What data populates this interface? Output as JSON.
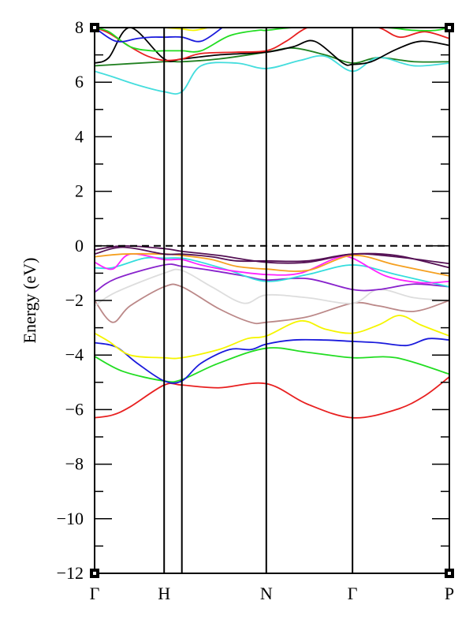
{
  "chart_data": {
    "type": "line",
    "title": "",
    "xlabel": "",
    "ylabel": "Energy (eV)",
    "ylim": [
      -12,
      8
    ],
    "xlim": [
      0,
      1
    ],
    "yticks": [
      -12,
      -10,
      -8,
      -6,
      -4,
      -2,
      0,
      2,
      4,
      6,
      8
    ],
    "ytick_labels": [
      "−12",
      "−10",
      "−8",
      "−6",
      "−4",
      "−2",
      "0",
      "2",
      "4",
      "6",
      "8"
    ],
    "kpoints": [
      {
        "label": "Γ",
        "x": 0.0
      },
      {
        "label": "H",
        "x": 0.196
      },
      {
        "label": "",
        "x": 0.246
      },
      {
        "label": "N",
        "x": 0.484
      },
      {
        "label": "Γ",
        "x": 0.727
      },
      {
        "label": "P",
        "x": 1.0
      }
    ],
    "fermi_level": 0,
    "grid": false,
    "series": [
      {
        "color": "#e82020",
        "x": [
          0,
          0.05,
          0.1,
          0.196,
          0.246,
          0.35,
          0.484,
          0.6,
          0.727,
          0.85,
          0.93,
          1.0
        ],
        "y": [
          -6.3,
          -6.2,
          -5.9,
          -5.1,
          -5.1,
          -5.2,
          -5.05,
          -5.8,
          -6.3,
          -6.0,
          -5.5,
          -4.8
        ]
      },
      {
        "color": "#22dd22",
        "x": [
          0,
          0.08,
          0.196,
          0.246,
          0.35,
          0.484,
          0.6,
          0.727,
          0.85,
          1.0
        ],
        "y": [
          -4.05,
          -4.6,
          -4.95,
          -4.9,
          -4.3,
          -3.75,
          -3.9,
          -4.1,
          -4.1,
          -4.7
        ]
      },
      {
        "color": "#1a1adc",
        "x": [
          0,
          0.06,
          0.12,
          0.196,
          0.246,
          0.3,
          0.38,
          0.44,
          0.484,
          0.56,
          0.65,
          0.727,
          0.8,
          0.88,
          0.94,
          1.0
        ],
        "y": [
          -3.55,
          -3.7,
          -4.3,
          -4.95,
          -4.95,
          -4.3,
          -3.8,
          -3.8,
          -3.6,
          -3.45,
          -3.45,
          -3.5,
          -3.55,
          -3.65,
          -3.4,
          -3.45
        ]
      },
      {
        "color": "#f5f500",
        "x": [
          0,
          0.04,
          0.1,
          0.196,
          0.246,
          0.35,
          0.43,
          0.484,
          0.58,
          0.65,
          0.727,
          0.8,
          0.86,
          0.92,
          1.0
        ],
        "y": [
          -3.2,
          -3.5,
          -4.0,
          -4.1,
          -4.1,
          -3.8,
          -3.4,
          -3.3,
          -2.75,
          -3.05,
          -3.2,
          -2.9,
          -2.55,
          -2.9,
          -3.3
        ]
      },
      {
        "color": "#bb8888",
        "x": [
          0,
          0.05,
          0.1,
          0.196,
          0.246,
          0.35,
          0.44,
          0.484,
          0.6,
          0.727,
          0.8,
          0.9,
          1.0
        ],
        "y": [
          -2.0,
          -2.8,
          -2.2,
          -1.5,
          -1.5,
          -2.3,
          -2.8,
          -2.8,
          -2.6,
          -2.1,
          -2.2,
          -2.4,
          -2.0
        ]
      },
      {
        "color": "#dddddd",
        "x": [
          0,
          0.06,
          0.196,
          0.246,
          0.33,
          0.42,
          0.484,
          0.6,
          0.727,
          0.8,
          0.9,
          1.0
        ],
        "y": [
          -2.2,
          -1.7,
          -1.0,
          -0.9,
          -1.5,
          -2.1,
          -1.8,
          -1.9,
          -2.1,
          -1.6,
          -1.9,
          -2.0
        ]
      },
      {
        "color": "#8822cc",
        "x": [
          0,
          0.06,
          0.196,
          0.246,
          0.33,
          0.42,
          0.484,
          0.6,
          0.727,
          0.8,
          0.9,
          1.0
        ],
        "y": [
          -1.7,
          -1.2,
          -0.7,
          -0.75,
          -0.9,
          -1.1,
          -1.25,
          -1.2,
          -1.6,
          -1.6,
          -1.4,
          -1.5
        ]
      },
      {
        "color": "#33dddd",
        "x": [
          0,
          0.05,
          0.14,
          0.196,
          0.246,
          0.3,
          0.38,
          0.484,
          0.6,
          0.727,
          0.85,
          1.0
        ],
        "y": [
          -0.8,
          -0.8,
          -0.45,
          -0.45,
          -0.45,
          -0.6,
          -0.9,
          -1.3,
          -1.05,
          -0.7,
          -1.05,
          -1.5
        ]
      },
      {
        "color": "#ff22ff",
        "x": [
          0,
          0.05,
          0.1,
          0.196,
          0.246,
          0.3,
          0.38,
          0.484,
          0.58,
          0.68,
          0.727,
          0.82,
          0.92,
          1.0
        ],
        "y": [
          -0.6,
          -0.85,
          -0.3,
          -0.5,
          -0.5,
          -0.7,
          -0.9,
          -1.05,
          -1.0,
          -0.45,
          -0.45,
          -1.1,
          -1.35,
          -1.3
        ]
      },
      {
        "color": "#f5a020",
        "x": [
          0,
          0.08,
          0.196,
          0.246,
          0.33,
          0.4,
          0.484,
          0.6,
          0.727,
          0.85,
          1.0
        ],
        "y": [
          -0.4,
          -0.3,
          -0.3,
          -0.35,
          -0.5,
          -0.75,
          -0.85,
          -0.9,
          -0.35,
          -0.7,
          -1.1
        ]
      },
      {
        "color": "#551155",
        "x": [
          0,
          0.08,
          0.196,
          0.246,
          0.33,
          0.4,
          0.484,
          0.6,
          0.727,
          0.85,
          1.0
        ],
        "y": [
          -0.3,
          -0.05,
          -0.3,
          -0.3,
          -0.4,
          -0.55,
          -0.55,
          -0.55,
          -0.3,
          -0.35,
          -0.8
        ]
      },
      {
        "color": "#551155",
        "x": [
          0,
          0.08,
          0.196,
          0.246,
          0.35,
          0.484,
          0.6,
          0.727,
          0.85,
          1.0
        ],
        "y": [
          -0.15,
          0.0,
          -0.1,
          -0.2,
          -0.35,
          -0.6,
          -0.6,
          -0.3,
          -0.4,
          -0.65
        ]
      },
      {
        "color": "#208020",
        "x": [
          0,
          0.196,
          0.246,
          0.35,
          0.484,
          0.56,
          0.65,
          0.727,
          0.8,
          0.9,
          1.0
        ],
        "y": [
          6.6,
          6.75,
          6.75,
          6.85,
          7.1,
          7.25,
          7.0,
          6.7,
          6.9,
          6.75,
          6.75
        ]
      },
      {
        "color": "#44dddd",
        "x": [
          0,
          0.05,
          0.12,
          0.196,
          0.246,
          0.3,
          0.4,
          0.484,
          0.58,
          0.65,
          0.727,
          0.8,
          0.9,
          1.0
        ],
        "y": [
          6.4,
          6.2,
          5.9,
          5.65,
          5.65,
          6.6,
          6.7,
          6.5,
          6.8,
          6.95,
          6.4,
          6.9,
          6.6,
          6.7
        ]
      },
      {
        "color": "#000000",
        "x": [
          0,
          0.04,
          0.1,
          0.196,
          0.246,
          0.35,
          0.484,
          0.56,
          0.62,
          0.7,
          0.727,
          0.78,
          0.85,
          0.92,
          1.0
        ],
        "y": [
          6.7,
          6.9,
          8.0,
          6.85,
          6.85,
          7.0,
          7.1,
          7.3,
          7.5,
          6.7,
          6.65,
          6.75,
          7.2,
          7.5,
          7.35
        ]
      },
      {
        "color": "#e82020",
        "x": [
          0,
          0.04,
          0.1,
          0.15,
          0.196,
          0.246,
          0.3,
          0.4,
          0.484,
          0.54,
          0.6,
          0.66,
          0.727,
          0.8,
          0.86,
          0.93,
          1.0
        ],
        "y": [
          8.0,
          7.8,
          7.3,
          6.95,
          6.8,
          6.85,
          7.05,
          7.1,
          7.15,
          7.5,
          8.0,
          8.0,
          8.0,
          8.0,
          7.65,
          7.85,
          7.6
        ]
      },
      {
        "color": "#22dd22",
        "x": [
          0,
          0.04,
          0.1,
          0.16,
          0.196,
          0.246,
          0.3,
          0.38,
          0.46,
          0.484,
          0.56,
          0.65,
          0.727,
          0.82,
          0.9,
          0.96,
          1.0
        ],
        "y": [
          8.0,
          7.85,
          7.3,
          7.15,
          7.15,
          7.15,
          7.15,
          7.7,
          7.9,
          7.9,
          8.0,
          8.0,
          8.0,
          8.0,
          7.9,
          7.9,
          8.0
        ]
      },
      {
        "color": "#1a1adc",
        "x": [
          0,
          0.06,
          0.12,
          0.16,
          0.196,
          0.246,
          0.3,
          0.36
        ],
        "y": [
          8.0,
          7.5,
          7.6,
          7.65,
          7.65,
          7.65,
          7.5,
          8.0
        ]
      },
      {
        "color": "#f5f500",
        "x": [
          0.196,
          0.246,
          0.28,
          0.32
        ],
        "y": [
          8.0,
          7.95,
          7.9,
          8.0
        ]
      }
    ]
  }
}
